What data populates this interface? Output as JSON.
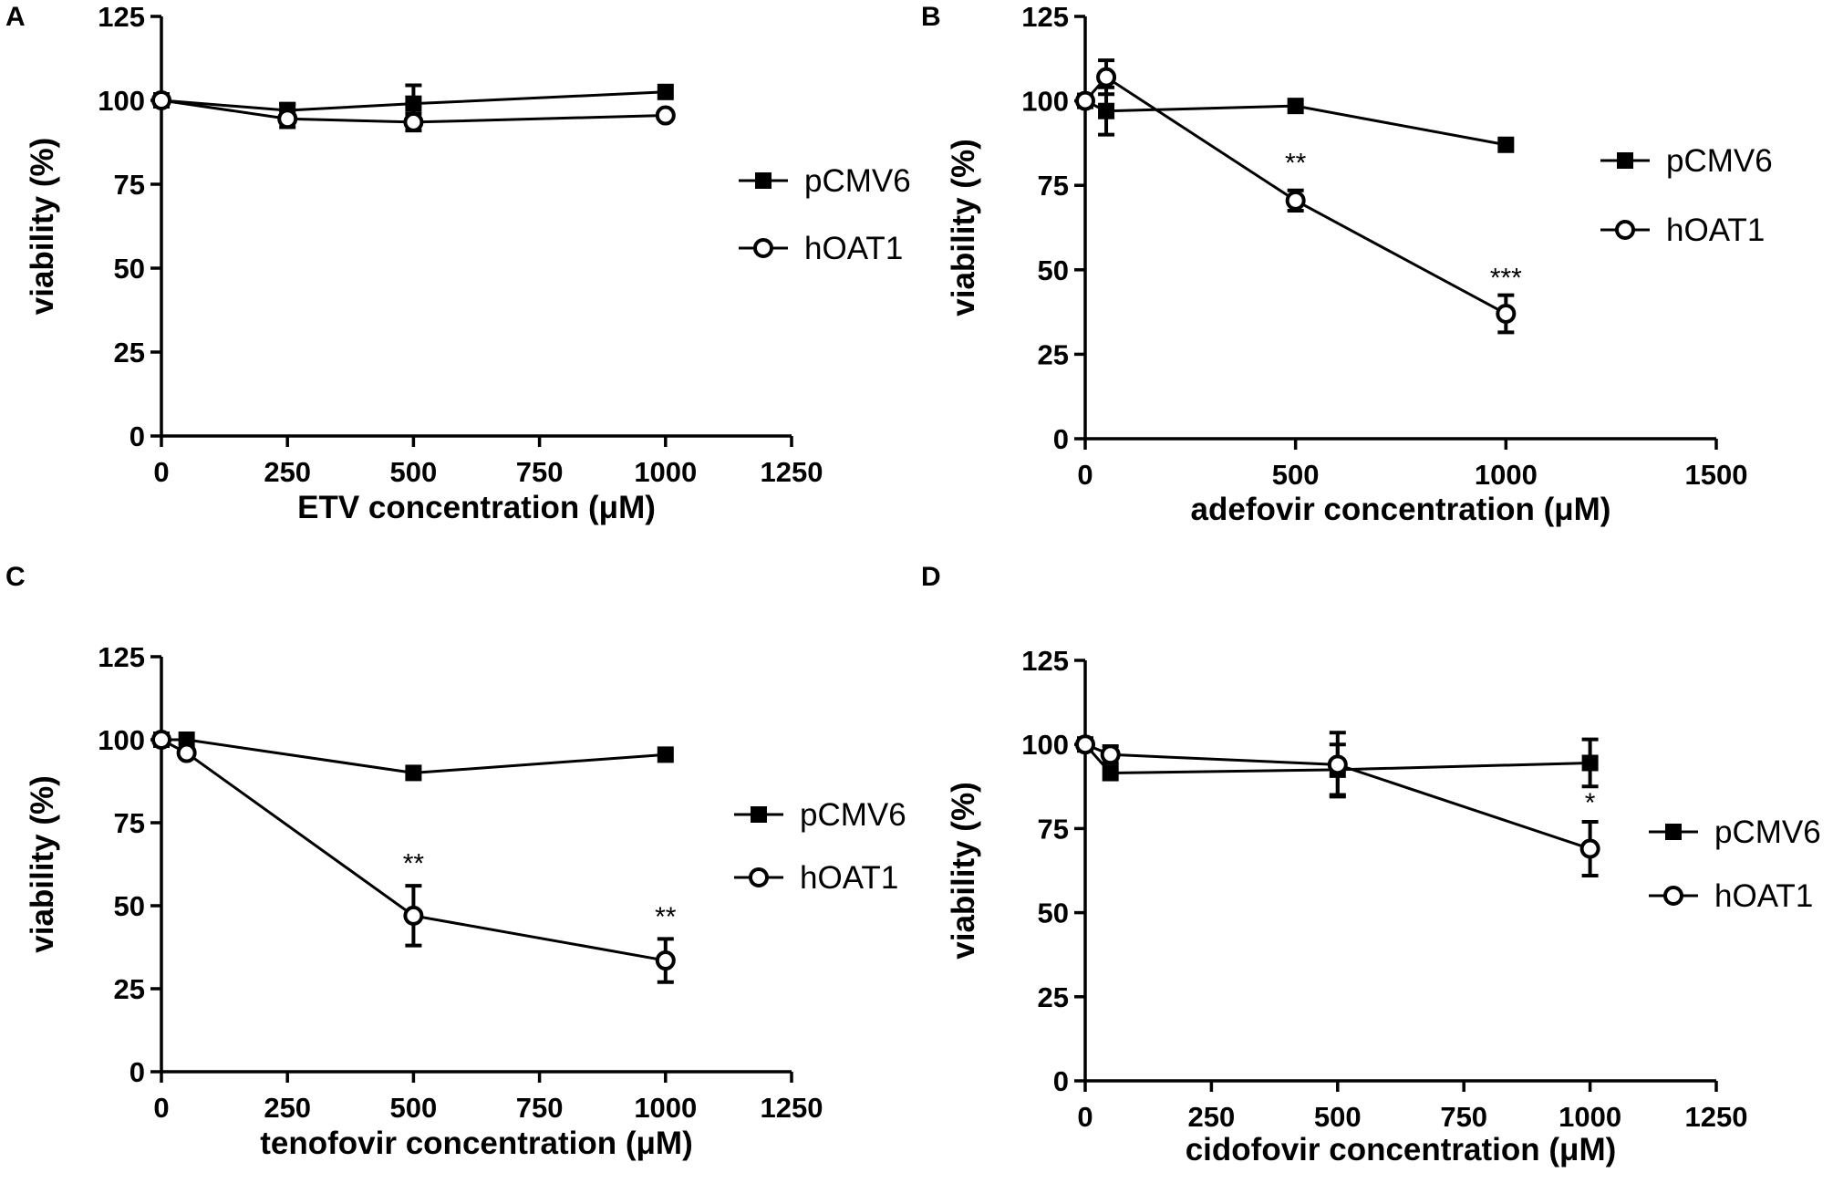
{
  "panels": [
    "A",
    "B",
    "C",
    "D"
  ],
  "chart_data": [
    {
      "panel": "A",
      "type": "line",
      "title": "",
      "xlabel": "ETV concentration (μM)",
      "ylabel": "viability (%)",
      "xlim": [
        0,
        1250
      ],
      "ylim": [
        0,
        125
      ],
      "xticks": [
        "0",
        "250",
        "500",
        "750",
        "1000",
        "1250"
      ],
      "yticks": [
        "0",
        "25",
        "50",
        "75",
        "100",
        "125"
      ],
      "legend": "right",
      "series": [
        {
          "name": "pCMV6",
          "marker": "square",
          "x": [
            0,
            250,
            500,
            1000
          ],
          "y": [
            100,
            97,
            99,
            102.5
          ],
          "err": [
            1,
            2,
            5.5,
            1
          ]
        },
        {
          "name": "hOAT1",
          "marker": "circle",
          "x": [
            0,
            250,
            500,
            1000
          ],
          "y": [
            100,
            94.5,
            93.5,
            95.5
          ],
          "err": [
            1,
            2.5,
            2.5,
            1
          ]
        }
      ],
      "annotations": []
    },
    {
      "panel": "B",
      "type": "line",
      "title": "",
      "xlabel": "adefovir concentration (μM)",
      "ylabel": "viability (%)",
      "xlim": [
        0,
        1500
      ],
      "ylim": [
        0,
        125
      ],
      "xticks": [
        "0",
        "500",
        "1000",
        "1500"
      ],
      "yticks": [
        "0",
        "25",
        "50",
        "75",
        "100",
        "125"
      ],
      "legend": "right",
      "series": [
        {
          "name": "pCMV6",
          "marker": "square",
          "x": [
            0,
            50,
            500,
            1000
          ],
          "y": [
            100,
            97,
            98.5,
            87
          ],
          "err": [
            1,
            7,
            1,
            1
          ]
        },
        {
          "name": "hOAT1",
          "marker": "circle",
          "x": [
            0,
            50,
            500,
            1000
          ],
          "y": [
            100,
            107,
            70.5,
            37
          ],
          "err": [
            1,
            5,
            3,
            5.5
          ]
        }
      ],
      "annotations": [
        {
          "text": "**",
          "x": 500,
          "y": 79
        },
        {
          "text": "***",
          "x": 1000,
          "y": 45
        }
      ]
    },
    {
      "panel": "C",
      "type": "line",
      "title": "",
      "xlabel": "tenofovir concentration (μM)",
      "ylabel": "viability (%)",
      "xlim": [
        0,
        1250
      ],
      "ylim": [
        0,
        125
      ],
      "xticks": [
        "0",
        "250",
        "500",
        "750",
        "1000",
        "1250"
      ],
      "yticks": [
        "0",
        "25",
        "50",
        "75",
        "100",
        "125"
      ],
      "legend": "right",
      "series": [
        {
          "name": "pCMV6",
          "marker": "square",
          "x": [
            0,
            50,
            500,
            1000
          ],
          "y": [
            100,
            100,
            90,
            95.5
          ],
          "err": [
            1,
            1,
            1,
            1
          ]
        },
        {
          "name": "hOAT1",
          "marker": "circle",
          "x": [
            0,
            50,
            500,
            1000
          ],
          "y": [
            100,
            96,
            47,
            33.5
          ],
          "err": [
            1,
            1,
            9,
            6.5
          ]
        }
      ],
      "annotations": [
        {
          "text": "**",
          "x": 500,
          "y": 60
        },
        {
          "text": "**",
          "x": 1000,
          "y": 44
        }
      ]
    },
    {
      "panel": "D",
      "type": "line",
      "title": "",
      "xlabel": "cidofovir concentration (μM)",
      "ylabel": "viability (%)",
      "xlim": [
        0,
        1250
      ],
      "ylim": [
        0,
        125
      ],
      "xticks": [
        "0",
        "250",
        "500",
        "750",
        "1000",
        "1250"
      ],
      "yticks": [
        "0",
        "25",
        "50",
        "75",
        "100",
        "125"
      ],
      "legend": "right",
      "series": [
        {
          "name": "pCMV6",
          "marker": "square",
          "x": [
            0,
            50,
            500,
            1000
          ],
          "y": [
            100,
            91.5,
            92.5,
            94.5
          ],
          "err": [
            1,
            1,
            7.5,
            7
          ]
        },
        {
          "name": "hOAT1",
          "marker": "circle",
          "x": [
            0,
            50,
            500,
            1000
          ],
          "y": [
            100,
            97,
            94,
            69
          ],
          "err": [
            1,
            2.5,
            9.5,
            8
          ]
        }
      ],
      "annotations": [
        {
          "text": "*",
          "x": 1000,
          "y": 80
        }
      ]
    }
  ]
}
